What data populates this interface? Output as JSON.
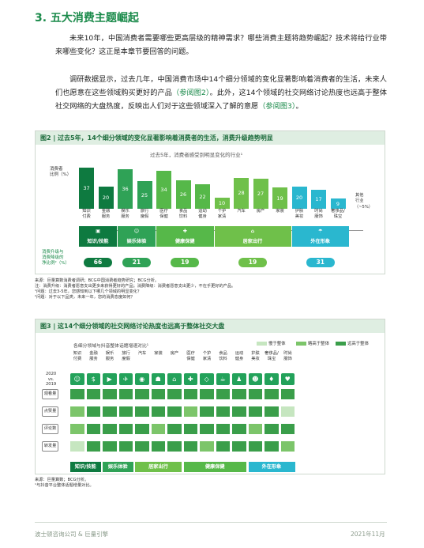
{
  "section_title": "3. 五大消费主题崛起",
  "para1": "未来10年，中国消费者需要哪些更高层级的精神需求？哪些消费主题将趋势崛起？技术将给行业带来哪些变化？这正是本章节要回答的问题。",
  "para2_a": "调研数据显示，过去几年，中国消费市场中14个细分领域的变化显著影响着消费者的生活，未来人们也愿意在这些领域购买更好的产品",
  "para2_ref1": "（参阅图2）",
  "para2_b": "。此外，这14个领域的社交网络讨论热度也远高于整体社交网络的大盘热度，反映出人们对于这些领域深入了解的意愿",
  "para2_ref2": "（参阅图3）",
  "para2_c": "。",
  "fig2": {
    "title": "图2 | 过去5年，14个细分领域的变化显著影响着消费者的生活，消费升级趋势明显",
    "subtitle": "过去5年，消费者感受到明显变化的行业¹",
    "ylabel": "消费者\n比例（%）",
    "other_label": "其他\n行业",
    "other_value": "（~5%）",
    "upgrade_label": "消费升级与\n消费降级的\n净比例²（%）",
    "icons": [
      "▣",
      "☺",
      "✚",
      "⌂",
      "☂"
    ],
    "groups": [
      {
        "name": "知识/技能",
        "value": "66",
        "color": "#0e7a40"
      },
      {
        "name": "娱乐体验",
        "value": "21",
        "color": "#2fa256"
      },
      {
        "name": "健康保健",
        "value": "19",
        "color": "#56b849"
      },
      {
        "name": "居家出行",
        "value": "19",
        "color": "#6fc04a"
      },
      {
        "name": "外在形象",
        "value": "31",
        "color": "#2ab7cf"
      }
    ]
  },
  "fig2_chart": {
    "type": "bar",
    "categories": [
      "知识\n付费",
      "金融\n服务",
      "娱乐\n服务",
      "旅行\n度假",
      "医疗\n保健",
      "食品\n饮料",
      "运动\n健身",
      "个护\n家清",
      "汽车",
      "房产",
      "家装",
      "护肤\n美妆",
      "时尚\n服饰",
      "奢侈品/\n珠宝"
    ],
    "values": [
      37,
      20,
      36,
      25,
      34,
      26,
      22,
      10,
      28,
      27,
      19,
      20,
      17,
      9
    ],
    "colors": [
      "#0e7a40",
      "#0e7a40",
      "#2fa256",
      "#2fa256",
      "#56b849",
      "#56b849",
      "#56b849",
      "#6fc04a",
      "#6fc04a",
      "#6fc04a",
      "#6fc04a",
      "#2ab7cf",
      "#2ab7cf",
      "#2ab7cf"
    ],
    "ylim": [
      0,
      40
    ]
  },
  "fig2_notes": [
    "来源：巨量算数消费者调研；BCG中国消费者趋势研究；BCG分析。",
    "注：消费升级：消费者愿意支出更多来获得更好的产品；消费降级：消费者愿意支出更少，不在乎更好的产品。",
    "¹问题：过去3-5年，您感知到以下哪几个领域的明显变化？",
    "²问题：对于以下品类，未来一年，您的消费态度如何？"
  ],
  "fig3": {
    "title": "图3 | 这14个细分领域的社交网络讨论热度也远高于整体社交大盘",
    "subtitle": "各细分领域与抖音整体话题增速对比¹",
    "period": "2020\nvs.\n2019",
    "legend": [
      {
        "label": "慢于整体",
        "color": "#c6e6c0"
      },
      {
        "label": "略高于整体",
        "color": "#7cc56a"
      },
      {
        "label": "远高于整体",
        "color": "#3a9e4a"
      }
    ],
    "categories": [
      "知识\n付费",
      "金融\n服务",
      "娱乐\n服务",
      "旅行\n度假",
      "汽车",
      "家装",
      "房产",
      "医疗\n保健",
      "个护\n家清",
      "食品\n饮料",
      "运动\n健身",
      "护肤\n美妆",
      "奢侈品/\n珠宝",
      "时尚\n服饰"
    ],
    "icons": [
      "☺",
      "$",
      "▶",
      "✈",
      "◉",
      "☗",
      "⌂",
      "✚",
      "◇",
      "☕",
      "♟",
      "☻",
      "♦",
      "♥"
    ],
    "rows": [
      "观看量",
      "点赞量",
      "评论数",
      "转发量"
    ],
    "grid": [
      [
        2,
        2,
        2,
        2,
        2,
        2,
        2,
        2,
        2,
        2,
        2,
        2,
        2,
        2
      ],
      [
        1,
        2,
        2,
        2,
        2,
        2,
        2,
        1,
        2,
        2,
        2,
        2,
        2,
        0
      ],
      [
        1,
        2,
        2,
        2,
        2,
        1,
        2,
        2,
        2,
        2,
        2,
        1,
        2,
        2
      ],
      [
        0,
        2,
        2,
        2,
        2,
        2,
        2,
        2,
        1,
        2,
        2,
        2,
        2,
        1
      ]
    ],
    "groups": [
      {
        "name": "知识/技能",
        "color": "#0e7a40"
      },
      {
        "name": "娱乐体验",
        "color": "#2fa256"
      },
      {
        "name": "居家出行",
        "color": "#6fc04a"
      },
      {
        "name": "健康保健",
        "color": "#56b849"
      },
      {
        "name": "外在形象",
        "color": "#2ab7cf"
      }
    ]
  },
  "fig3_notes": [
    "来源：巨量算数；BCG分析。",
    "¹与抖音平台整体话题增量对比。"
  ],
  "footer_left": "波士顿咨询公司 & 巨量引擎",
  "footer_right": "2021年11月"
}
